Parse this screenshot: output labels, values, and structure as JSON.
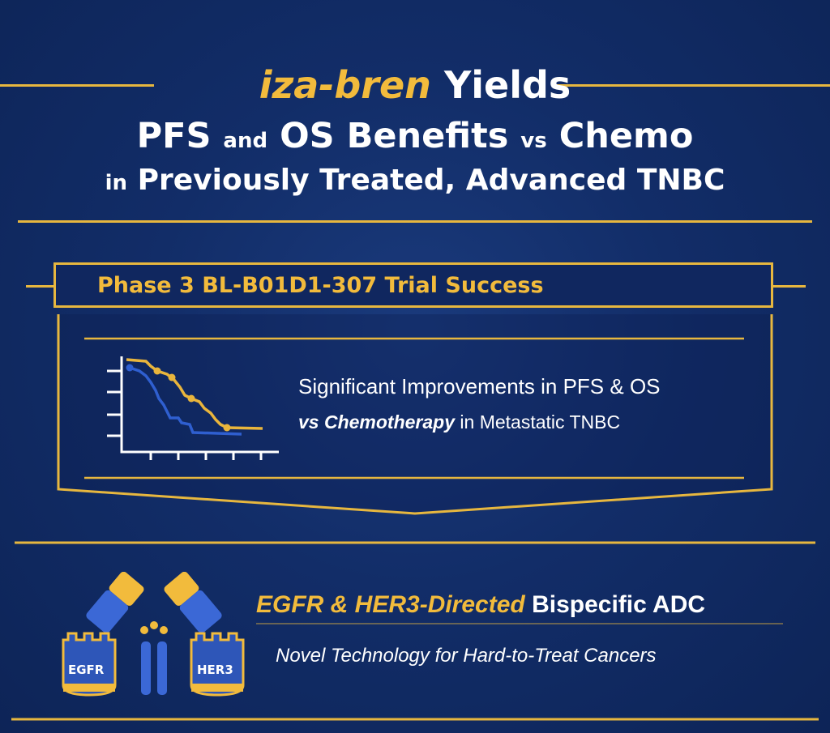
{
  "title": {
    "drug": "iza-bren",
    "line1_rest": "Yields",
    "line2_a": "PFS",
    "line2_b": "and",
    "line2_c": "OS Benefits",
    "line2_d": "vs",
    "line2_e": "Chemo",
    "line3_a": "in",
    "line3_b": "Previously Treated, Advanced TNBC"
  },
  "banner": {
    "text": "Phase 3 BL-B01D1-307 Trial Success"
  },
  "results_card": {
    "line1": "Significant Improvements in PFS & OS",
    "line2_a": "vs",
    "line2_b": "Chemotherapy",
    "line2_c": "in Metastatic TNBC",
    "chart_icon": "survival-curve-icon"
  },
  "mechanism": {
    "title_gold": "EGFR & HER3-Directed",
    "title_white": "Bispecific ADC",
    "subtitle": "Novel Technology for Hard-to-Treat Cancers",
    "receptor_left": "EGFR",
    "receptor_right": "HER3",
    "antibody_icon": "bispecific-antibody-icon"
  },
  "colors": {
    "background": "#122d68",
    "gold": "#e7b73f",
    "curve_gold": "#e9b53c",
    "curve_blue": "#2f5fd0"
  }
}
